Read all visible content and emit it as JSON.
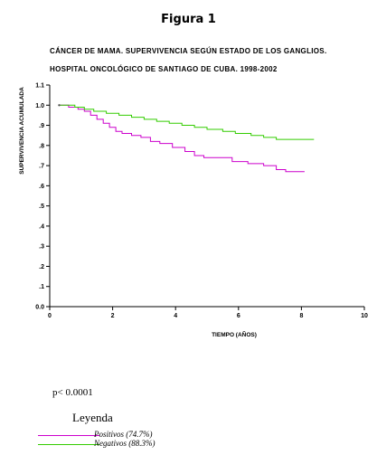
{
  "figure_label": "Figura 1",
  "title_line1": "CÁNCER DE MAMA. SUPERVIVENCIA SEGÚN ESTADO DE LOS GANGLIOS.",
  "title_line2": "HOSPITAL ONCOLÓGICO DE SANTIAGO DE CUBA. 1998-2002",
  "p_value": "p< 0.0001",
  "legend_title": "Leyenda",
  "chart_data": {
    "type": "line",
    "title": "CÁNCER DE MAMA. SUPERVIVENCIA SEGÚN ESTADO DE LOS GANGLIOS. HOSPITAL ONCOLÓGICO DE SANTIAGO DE CUBA. 1998-2002",
    "xlabel": "TIEMPO (AÑOS)",
    "ylabel": "SUPERVIVENCIA ACUMULADA",
    "xlim": [
      0,
      10
    ],
    "ylim": [
      0,
      1.1
    ],
    "xticks": [
      0,
      2,
      4,
      6,
      8,
      10
    ],
    "xtick_labels": [
      "0",
      "2",
      "4",
      "6",
      "8",
      "10"
    ],
    "yticks": [
      0,
      0.1,
      0.2,
      0.3,
      0.4,
      0.5,
      0.6,
      0.7,
      0.8,
      0.9,
      1.0,
      1.1
    ],
    "ytick_labels": [
      "0.0",
      ".1",
      ".2",
      ".3",
      ".4",
      ".5",
      ".6",
      ".7",
      ".8",
      ".9",
      "1.0",
      "1.1"
    ],
    "grid": false,
    "step": true,
    "series": [
      {
        "name": "Positivos (74.7%)",
        "color": "#cc00cc",
        "x": [
          0.3,
          0.6,
          0.9,
          1.1,
          1.3,
          1.5,
          1.7,
          1.9,
          2.1,
          2.3,
          2.6,
          2.9,
          3.2,
          3.5,
          3.9,
          4.3,
          4.6,
          4.9,
          5.4,
          5.8,
          6.3,
          6.8,
          7.2,
          7.5,
          8.1
        ],
        "y": [
          1.0,
          0.99,
          0.98,
          0.97,
          0.95,
          0.93,
          0.91,
          0.89,
          0.87,
          0.86,
          0.85,
          0.84,
          0.82,
          0.81,
          0.79,
          0.77,
          0.75,
          0.74,
          0.74,
          0.72,
          0.71,
          0.7,
          0.68,
          0.67,
          0.67
        ]
      },
      {
        "name": "Negativos (88.3%)",
        "color": "#33cc00",
        "x": [
          0.3,
          0.8,
          1.1,
          1.4,
          1.8,
          2.2,
          2.6,
          3.0,
          3.4,
          3.8,
          4.2,
          4.6,
          5.0,
          5.5,
          5.9,
          6.4,
          6.8,
          7.2,
          8.4
        ],
        "y": [
          1.0,
          0.99,
          0.98,
          0.97,
          0.96,
          0.95,
          0.94,
          0.93,
          0.92,
          0.91,
          0.9,
          0.89,
          0.88,
          0.87,
          0.86,
          0.85,
          0.84,
          0.83,
          0.83
        ]
      }
    ]
  }
}
